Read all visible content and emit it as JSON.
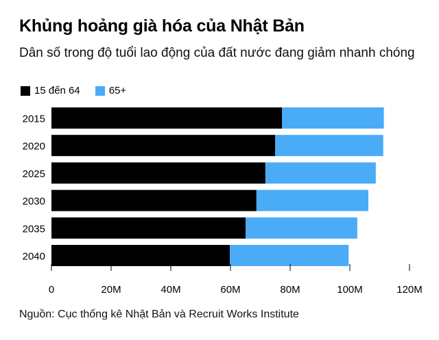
{
  "title": "Khủng hoảng già hóa của Nhật Bản",
  "subtitle": "Dân số trong độ tuổi lao động của đất nước đang giảm nhanh chóng",
  "source": "Nguồn: Cục thống kê Nhật Bản và Recruit Works Institute",
  "colors": {
    "working": "#000000",
    "elderly": "#4aabf7"
  },
  "chart_data": {
    "type": "bar",
    "orientation": "horizontal",
    "stacked": true,
    "categories": [
      "2015",
      "2020",
      "2025",
      "2030",
      "2035",
      "2040"
    ],
    "series": [
      {
        "name": "15 đến 64",
        "color": "#000000",
        "values": [
          77.3,
          75.0,
          71.7,
          68.7,
          65.1,
          59.8
        ]
      },
      {
        "name": "65+",
        "color": "#4aabf7",
        "values": [
          34.1,
          36.2,
          37.0,
          37.5,
          37.4,
          39.8
        ]
      }
    ],
    "xlim": [
      0,
      120
    ],
    "x_ticks": [
      "0",
      "20M",
      "40M",
      "60M",
      "80M",
      "100M",
      "120M"
    ],
    "x_tick_values": [
      0,
      20,
      40,
      60,
      80,
      100,
      120
    ],
    "legend_position": "top-left",
    "grid": false
  }
}
